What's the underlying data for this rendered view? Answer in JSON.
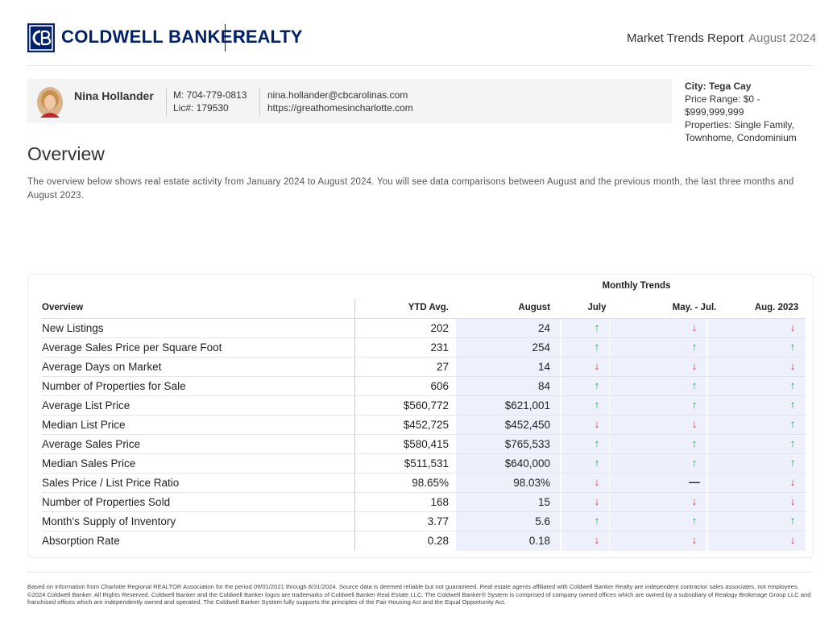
{
  "header": {
    "brand": "COLDWELL BANKER",
    "brand_suffix": "REALTY",
    "report": "Market Trends Report",
    "period": "August 2024"
  },
  "agent": {
    "name": "Nina Hollander",
    "mobile": "M: 704-779-0813",
    "license": "Lic#: 179530",
    "email": "nina.hollander@cbcarolinas.com",
    "website": "https://greathomesincharlotte.com"
  },
  "filters": {
    "city": "City: Tega Cay",
    "price_range": "Price Range: $0 - $999,999,999",
    "properties": "Properties: Single Family, Townhome, Condominium"
  },
  "overview": {
    "title": "Overview",
    "text": "The overview below shows real estate activity from January 2024 to August 2024. You will see data comparisons between August and the previous month, the last three months and August 2023."
  },
  "table": {
    "group_header": "Monthly Trends",
    "columns": [
      "Overview",
      "YTD Avg.",
      "August",
      "July",
      "May. - Jul.",
      "Aug. 2023"
    ],
    "rows": [
      {
        "label": "New Listings",
        "ytd": "202",
        "month": "24",
        "trends": [
          {
            "symbol": "↑",
            "color": "#1fae5b"
          },
          {
            "symbol": "↓",
            "color": "#e0303a"
          },
          {
            "symbol": "↓",
            "color": "#e0303a"
          }
        ]
      },
      {
        "label": "Average Sales Price per Square Foot",
        "ytd": "231",
        "month": "254",
        "trends": [
          {
            "symbol": "↑",
            "color": "#1fae5b"
          },
          {
            "symbol": "↑",
            "color": "#1fae5b"
          },
          {
            "symbol": "↑",
            "color": "#1fae5b"
          }
        ]
      },
      {
        "label": "Average Days on Market",
        "ytd": "27",
        "month": "14",
        "trends": [
          {
            "symbol": "↓",
            "color": "#e0303a"
          },
          {
            "symbol": "↓",
            "color": "#e0303a"
          },
          {
            "symbol": "↓",
            "color": "#e0303a"
          }
        ]
      },
      {
        "label": "Number of Properties for Sale",
        "ytd": "606",
        "month": "84",
        "trends": [
          {
            "symbol": "↑",
            "color": "#1fae5b"
          },
          {
            "symbol": "↑",
            "color": "#1fae5b"
          },
          {
            "symbol": "↑",
            "color": "#1fae5b"
          }
        ]
      },
      {
        "label": "Average List Price",
        "ytd": "$560,772",
        "month": "$621,001",
        "trends": [
          {
            "symbol": "↑",
            "color": "#1fae5b"
          },
          {
            "symbol": "↑",
            "color": "#1fae5b"
          },
          {
            "symbol": "↑",
            "color": "#1fae5b"
          }
        ]
      },
      {
        "label": "Median List Price",
        "ytd": "$452,725",
        "month": "$452,450",
        "trends": [
          {
            "symbol": "↓",
            "color": "#e0303a"
          },
          {
            "symbol": "↓",
            "color": "#e0303a"
          },
          {
            "symbol": "↑",
            "color": "#1fae5b"
          }
        ]
      },
      {
        "label": "Average Sales Price",
        "ytd": "$580,415",
        "month": "$765,533",
        "trends": [
          {
            "symbol": "↑",
            "color": "#1fae5b"
          },
          {
            "symbol": "↑",
            "color": "#1fae5b"
          },
          {
            "symbol": "↑",
            "color": "#1fae5b"
          }
        ]
      },
      {
        "label": "Median Sales Price",
        "ytd": "$511,531",
        "month": "$640,000",
        "trends": [
          {
            "symbol": "↑",
            "color": "#1fae5b"
          },
          {
            "symbol": "↑",
            "color": "#1fae5b"
          },
          {
            "symbol": "↑",
            "color": "#1fae5b"
          }
        ]
      },
      {
        "label": "Sales Price / List Price Ratio",
        "ytd": "98.65%",
        "month": "98.03%",
        "trends": [
          {
            "symbol": "↓",
            "color": "#e0303a"
          },
          {
            "symbol": "—",
            "color": "#222222"
          },
          {
            "symbol": "↓",
            "color": "#e0303a"
          }
        ]
      },
      {
        "label": "Number of Properties Sold",
        "ytd": "168",
        "month": "15",
        "trends": [
          {
            "symbol": "↓",
            "color": "#e0303a"
          },
          {
            "symbol": "↓",
            "color": "#e0303a"
          },
          {
            "symbol": "↓",
            "color": "#e0303a"
          }
        ]
      },
      {
        "label": "Month's Supply of Inventory",
        "ytd": "3.77",
        "month": "5.6",
        "trends": [
          {
            "symbol": "↑",
            "color": "#1fae5b"
          },
          {
            "symbol": "↑",
            "color": "#1fae5b"
          },
          {
            "symbol": "↑",
            "color": "#1fae5b"
          }
        ]
      },
      {
        "label": "Absorption Rate",
        "ytd": "0.28",
        "month": "0.18",
        "trends": [
          {
            "symbol": "↓",
            "color": "#e0303a"
          },
          {
            "symbol": "↓",
            "color": "#e0303a"
          },
          {
            "symbol": "↓",
            "color": "#e0303a"
          }
        ]
      }
    ]
  },
  "footer": {
    "disclaimer": "Based on information from Charlotte Regional REALTOR Association for the period 09/01/2021 through 8/31/2024. Source data is deemed reliable but not guaranteed. Real estate agents affiliated with Coldwell Banker Realty are independent contractor sales associates, not employees. ©2024 Coldwell Banker. All Rights Reserved. Coldwell Banker and the Coldwell Banker logos are trademarks of Coldwell Banker Real Estate LLC. The Coldwell Banker® System is comprised of company owned offices which are owned by a subsidiary of Realogy Brokerage Group LLC and franchised offices which are independently owned and operated. The Coldwell Banker System fully supports the principles of the Fair Housing Act and the Equal Opportunity Act."
  }
}
